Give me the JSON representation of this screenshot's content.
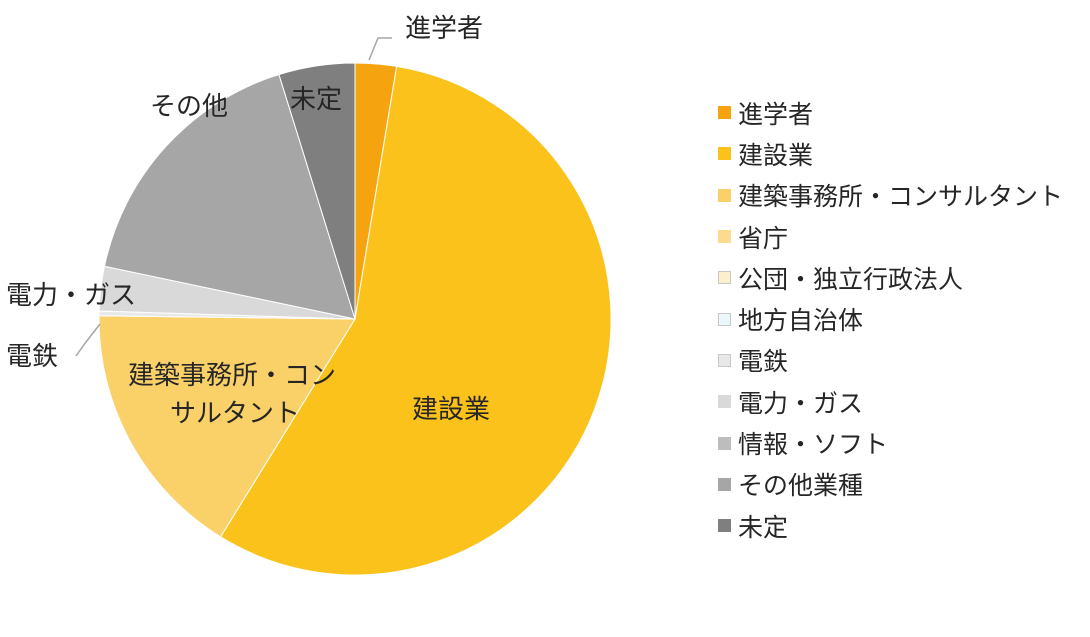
{
  "chart_data": {
    "type": "pie",
    "slices": [
      {
        "name": "進学者",
        "value": 2.6,
        "color": "#F5A40F",
        "label": "進学者"
      },
      {
        "name": "建設業",
        "value": 56.2,
        "color": "#FBC21C",
        "label": "建設業"
      },
      {
        "name": "建築事務所・コンサルタント",
        "value": 16.4,
        "color": "#FAD169",
        "label_lines": [
          "建築事務所・コン",
          "サルタント"
        ]
      },
      {
        "name": "省庁",
        "value": 0,
        "color": "#FBDC8E"
      },
      {
        "name": "公団・独立行政法人",
        "value": 0,
        "color": "#FCEFCB"
      },
      {
        "name": "地方自治体",
        "value": 0,
        "color": "#EAF8FB"
      },
      {
        "name": "電鉄",
        "value": 0.3,
        "color": "#E8E8E8",
        "label": "電鉄"
      },
      {
        "name": "電力・ガス",
        "value": 2.8,
        "color": "#D9D9D9",
        "label": "電力・ガス"
      },
      {
        "name": "情報・ソフト",
        "value": 0,
        "color": "#BDBDBD"
      },
      {
        "name": "その他業種",
        "value": 16.9,
        "color": "#A6A6A6",
        "label": "その他"
      },
      {
        "name": "未定",
        "value": 4.8,
        "color": "#7F7F7F",
        "label": "未定"
      }
    ],
    "legend": {
      "position": "right",
      "items": [
        "進学者",
        "建設業",
        "建築事務所・コンサルタント",
        "省庁",
        "公団・独立行政法人",
        "地方自治体",
        "電鉄",
        "電力・ガス",
        "情報・ソフト",
        "その他業種",
        "未定"
      ]
    }
  }
}
